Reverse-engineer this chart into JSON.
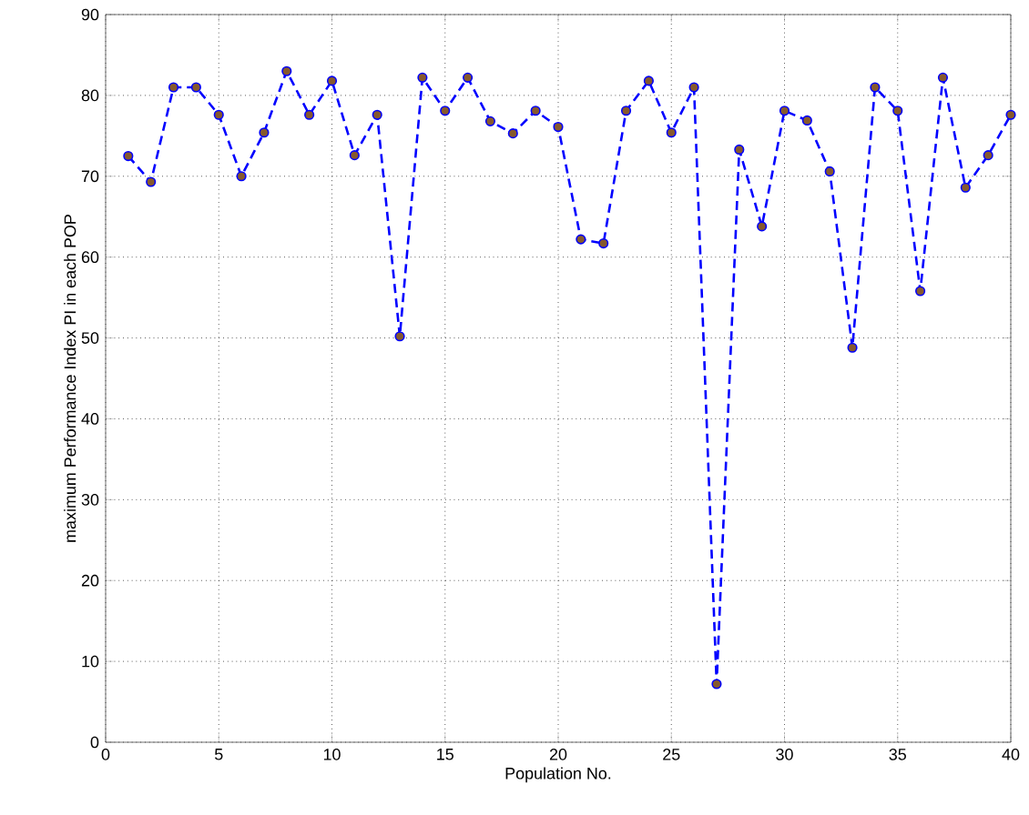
{
  "chart_data": {
    "type": "line",
    "xlabel": "Population No.",
    "ylabel": "maximum Performance Index PI in each POP",
    "x": [
      1,
      2,
      3,
      4,
      5,
      6,
      7,
      8,
      9,
      10,
      11,
      12,
      13,
      14,
      15,
      16,
      17,
      18,
      19,
      20,
      21,
      22,
      23,
      24,
      25,
      26,
      27,
      28,
      29,
      30,
      31,
      32,
      33,
      34,
      35,
      36,
      37,
      38,
      39,
      40
    ],
    "series": [
      {
        "color": "#0000ff",
        "values": [
          72.5,
          69.3,
          81,
          81,
          77.6,
          70,
          75.4,
          83,
          77.6,
          81.8,
          72.6,
          77.6,
          50.2,
          82.2,
          78.1,
          82.2,
          76.8,
          75.3,
          78.1,
          76.1,
          62.2,
          61.7,
          78.1,
          81.8,
          75.4,
          81,
          7.2,
          73.3,
          63.8,
          78.1,
          76.9,
          70.6,
          48.8,
          81,
          78.1,
          55.8,
          82.2,
          68.6,
          72.6,
          77.6
        ]
      }
    ],
    "xlim": [
      0,
      40
    ],
    "ylim": [
      0,
      90
    ],
    "xticks": [
      0,
      5,
      10,
      15,
      20,
      25,
      30,
      35,
      40
    ],
    "yticks": [
      0,
      10,
      20,
      30,
      40,
      50,
      60,
      70,
      80,
      90
    ],
    "grid": true,
    "marker": "circle",
    "line_style": "dashed"
  }
}
